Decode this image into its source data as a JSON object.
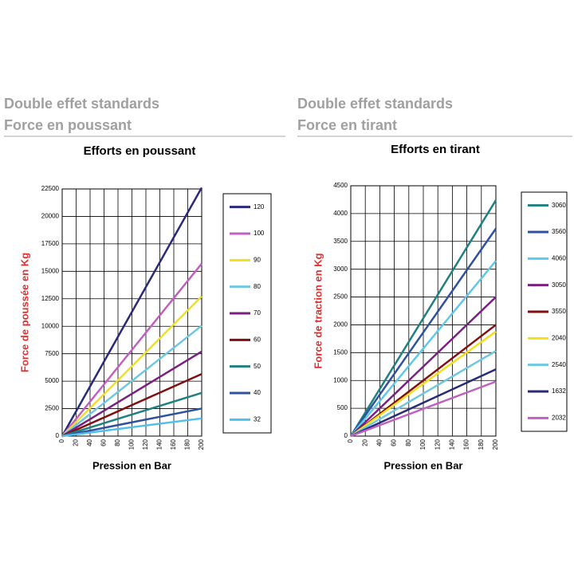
{
  "chart_data": [
    {
      "type": "line",
      "heading": "Double effet standards",
      "subheading": "Force en poussant",
      "title": "Efforts en poussant",
      "x_label": "Pression  en Bar",
      "y_label": "Force de poussée  en Kg",
      "x": [
        0,
        200
      ],
      "xlim": [
        0,
        200
      ],
      "xticks": [
        0,
        20,
        40,
        60,
        80,
        100,
        120,
        140,
        160,
        180,
        200
      ],
      "ylim": [
        0,
        22500
      ],
      "yticks": [
        0,
        2500,
        5000,
        7500,
        10000,
        12500,
        15000,
        17500,
        20000,
        22500
      ],
      "grid": true,
      "series": [
        {
          "name": "120",
          "color": "#2a2a7a",
          "values": [
            0,
            22620
          ]
        },
        {
          "name": "100",
          "color": "#c060c0",
          "values": [
            0,
            15700
          ]
        },
        {
          "name": "90",
          "color": "#f0e020",
          "values": [
            0,
            12720
          ]
        },
        {
          "name": "80",
          "color": "#70c8e0",
          "values": [
            0,
            10050
          ]
        },
        {
          "name": "70",
          "color": "#7a2080",
          "values": [
            0,
            7700
          ]
        },
        {
          "name": "60",
          "color": "#801010",
          "values": [
            0,
            5650
          ]
        },
        {
          "name": "50",
          "color": "#208080",
          "values": [
            0,
            3930
          ]
        },
        {
          "name": "40",
          "color": "#3050a0",
          "values": [
            0,
            2510
          ]
        },
        {
          "name": "32",
          "color": "#50c0e8",
          "values": [
            0,
            1610
          ]
        }
      ]
    },
    {
      "type": "line",
      "heading": "Double effet standards",
      "subheading": "Force en tirant",
      "title": "Efforts en tirant",
      "x_label": "Pression  en Bar",
      "y_label": "Force de traction  en Kg",
      "x": [
        0,
        200
      ],
      "xlim": [
        0,
        200
      ],
      "xticks": [
        0,
        20,
        40,
        60,
        80,
        100,
        120,
        140,
        160,
        180,
        200
      ],
      "ylim": [
        0,
        4500
      ],
      "yticks": [
        0,
        500,
        1000,
        1500,
        2000,
        2500,
        3000,
        3500,
        4000,
        4500
      ],
      "grid": true,
      "series": [
        {
          "name": "3060",
          "color": "#208080",
          "values": [
            0,
            4240
          ]
        },
        {
          "name": "3560",
          "color": "#3050a0",
          "values": [
            0,
            3730
          ]
        },
        {
          "name": "4060",
          "color": "#60c8e8",
          "values": [
            0,
            3150
          ]
        },
        {
          "name": "3050",
          "color": "#7a2080",
          "values": [
            0,
            2500
          ]
        },
        {
          "name": "3550",
          "color": "#801010",
          "values": [
            0,
            2000
          ]
        },
        {
          "name": "2040",
          "color": "#f0e020",
          "values": [
            0,
            1880
          ]
        },
        {
          "name": "2540",
          "color": "#70c8e0",
          "values": [
            0,
            1530
          ]
        },
        {
          "name": "1632",
          "color": "#2a2a7a",
          "values": [
            0,
            1200
          ]
        },
        {
          "name": "2032",
          "color": "#c060c0",
          "values": [
            0,
            980
          ]
        }
      ]
    }
  ]
}
